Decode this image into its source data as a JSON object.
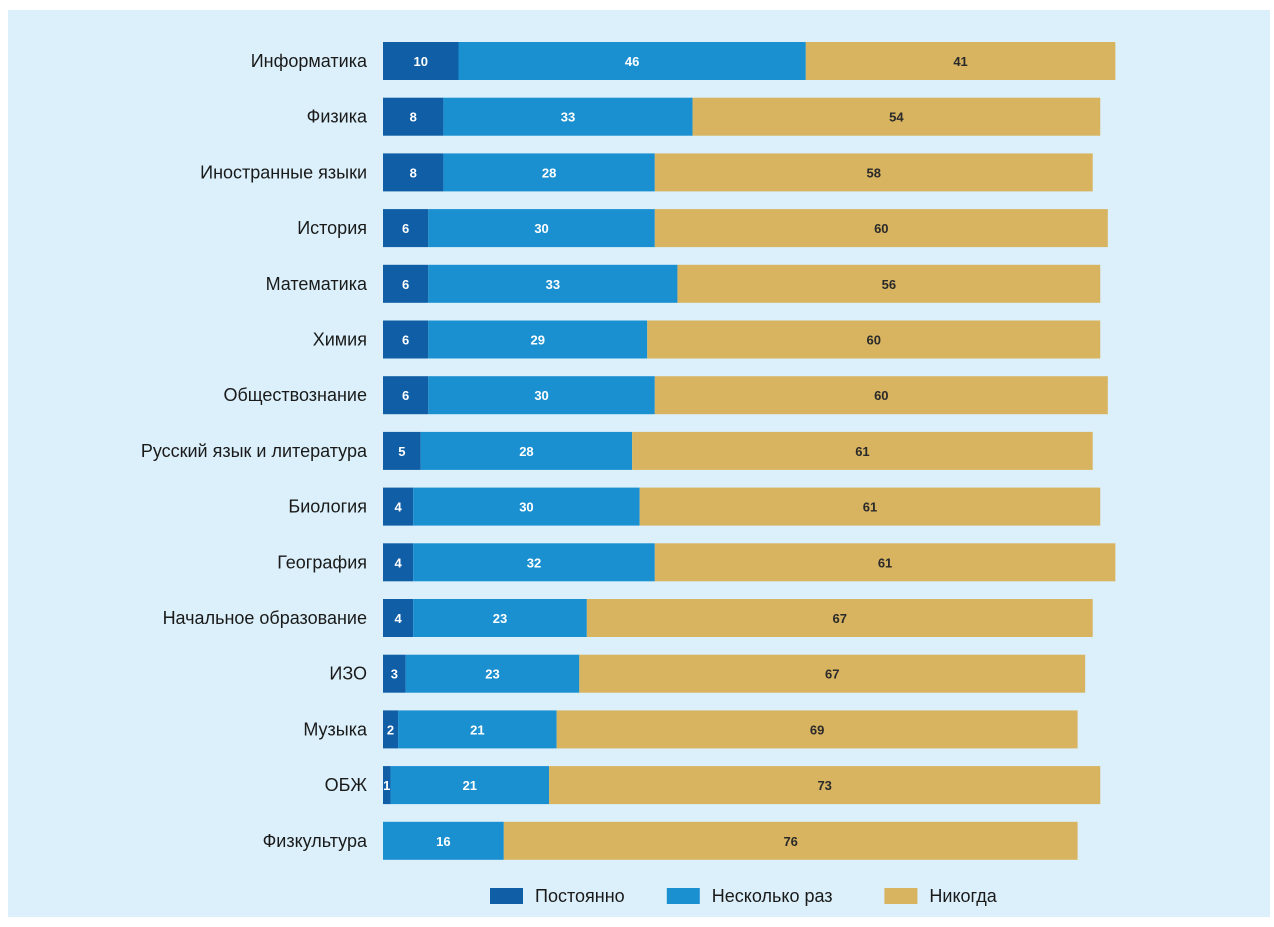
{
  "chart_data": {
    "type": "bar",
    "orientation": "horizontal",
    "stacked": true,
    "title": "",
    "xlabel": "",
    "ylabel": "",
    "xlim": [
      0,
      100
    ],
    "grid": false,
    "legend_position": "bottom",
    "categories": [
      "Информатика",
      "Физика",
      "Иностранные языки",
      "История",
      "Математика",
      "Химия",
      "Обществознание",
      "Русский язык и литература",
      "Биология",
      "География",
      "Начальное образование",
      "ИЗО",
      "Музыка",
      "ОБЖ",
      "Физкультура"
    ],
    "series": [
      {
        "name": "Постоянно",
        "color": "#0f5ea6",
        "label_color": "#ffffff",
        "values": [
          10,
          8,
          8,
          6,
          6,
          6,
          6,
          5,
          4,
          4,
          4,
          3,
          2,
          1,
          0
        ]
      },
      {
        "name": "Несколько раз",
        "color": "#1b90d0",
        "label_color": "#ffffff",
        "values": [
          46,
          33,
          28,
          30,
          33,
          29,
          30,
          28,
          30,
          32,
          23,
          23,
          21,
          21,
          16
        ]
      },
      {
        "name": "Никогда",
        "color": "#d8b460",
        "label_color": "#2a2a2a",
        "values": [
          41,
          54,
          58,
          60,
          56,
          60,
          60,
          61,
          61,
          61,
          67,
          67,
          69,
          73,
          76
        ]
      }
    ]
  }
}
